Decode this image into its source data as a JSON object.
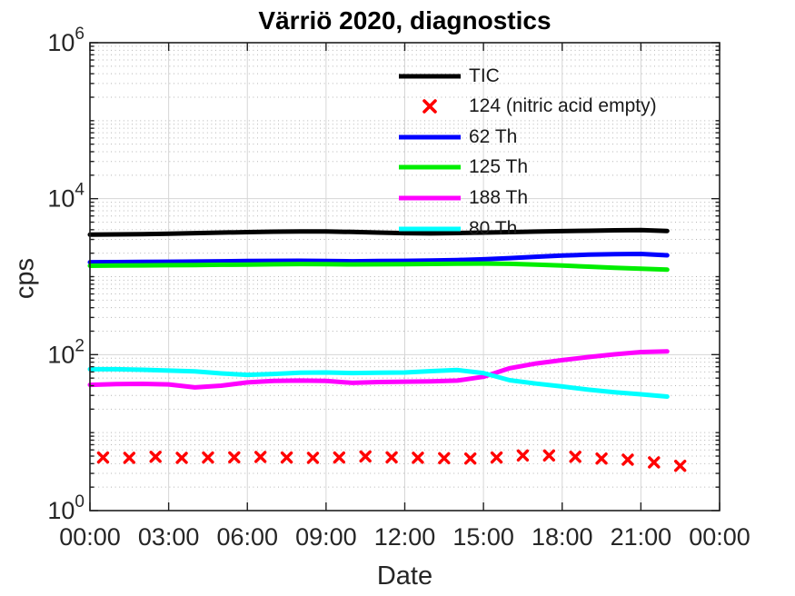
{
  "title": "Värriö 2020, diagnostics",
  "axes": {
    "ylabel": "cps",
    "xlabel": "Date",
    "x_ticks": [
      "00:00",
      "03:00",
      "06:00",
      "09:00",
      "12:00",
      "15:00",
      "18:00",
      "21:00",
      "00:00"
    ],
    "y_ticks": [
      {
        "base": "10",
        "exp": "0"
      },
      {
        "base": "10",
        "exp": "2"
      },
      {
        "base": "10",
        "exp": "4"
      },
      {
        "base": "10",
        "exp": "6"
      }
    ]
  },
  "colors": {
    "tic": "#000000",
    "m124": "#ff0000",
    "th62": "#0000ff",
    "th125": "#00ee00",
    "th188": "#ff00ff",
    "th80": "#00ffff",
    "grid_major": "#d6d6d6",
    "grid_minor": "#b4b4b4",
    "axis": "#1f1f1f",
    "text": "#262626"
  },
  "legend": {
    "items": [
      {
        "label": "TIC",
        "color": "#000000",
        "type": "line"
      },
      {
        "label": "124 (nitric acid empty)",
        "color": "#ff0000",
        "type": "x-marker"
      },
      {
        "label": "62 Th",
        "color": "#0000ff",
        "type": "line"
      },
      {
        "label": "125 Th",
        "color": "#00ee00",
        "type": "line"
      },
      {
        "label": "188 Th",
        "color": "#ff00ff",
        "type": "line"
      },
      {
        "label": "80 Th",
        "color": "#00ffff",
        "type": "line"
      }
    ]
  },
  "chart_data": {
    "type": "line",
    "title": "Värriö 2020, diagnostics",
    "xlabel": "Date",
    "ylabel": "cps",
    "x_axis": {
      "unit": "hours of day",
      "range": [
        0,
        24
      ],
      "tick_hours": [
        0,
        3,
        6,
        9,
        12,
        15,
        18,
        21,
        24
      ],
      "tick_labels": [
        "00:00",
        "03:00",
        "06:00",
        "09:00",
        "12:00",
        "15:00",
        "18:00",
        "21:00",
        "00:00"
      ]
    },
    "y_axis": {
      "scale": "log10",
      "range": [
        1,
        1000000
      ],
      "labeled_exponents": [
        0,
        2,
        4,
        6
      ]
    },
    "grid": {
      "major": "solid",
      "minor": "dotted",
      "minor_mantissas": [
        2,
        3,
        4,
        5,
        6,
        7,
        8,
        9
      ]
    },
    "legend_position": "upper center, transparent, no box",
    "series": [
      {
        "name": "TIC",
        "color": "#000000",
        "style": "line",
        "x": [
          0,
          1,
          2,
          3,
          4,
          5,
          6,
          7,
          8,
          9,
          10,
          11,
          12,
          13,
          14,
          15,
          16,
          17,
          18,
          19,
          20,
          21,
          22
        ],
        "y": [
          3450,
          3480,
          3510,
          3550,
          3610,
          3670,
          3720,
          3770,
          3800,
          3790,
          3740,
          3670,
          3610,
          3590,
          3620,
          3670,
          3720,
          3780,
          3830,
          3880,
          3930,
          3950,
          3860
        ]
      },
      {
        "name": "62 Th",
        "color": "#0000ff",
        "style": "line",
        "x": [
          0,
          1,
          2,
          3,
          4,
          5,
          6,
          7,
          8,
          9,
          10,
          11,
          12,
          13,
          14,
          15,
          16,
          17,
          18,
          19,
          20,
          21,
          22
        ],
        "y": [
          1530,
          1538,
          1545,
          1552,
          1560,
          1572,
          1585,
          1595,
          1600,
          1588,
          1575,
          1585,
          1595,
          1608,
          1632,
          1668,
          1730,
          1800,
          1862,
          1912,
          1945,
          1958,
          1880
        ]
      },
      {
        "name": "125 Th",
        "color": "#00ee00",
        "style": "line",
        "x": [
          0,
          1,
          2,
          3,
          4,
          5,
          6,
          7,
          8,
          9,
          10,
          11,
          12,
          13,
          14,
          15,
          16,
          17,
          18,
          19,
          20,
          21,
          22
        ],
        "y": [
          1380,
          1388,
          1395,
          1402,
          1410,
          1420,
          1430,
          1440,
          1450,
          1443,
          1436,
          1441,
          1449,
          1456,
          1464,
          1470,
          1458,
          1428,
          1388,
          1344,
          1300,
          1264,
          1228
        ]
      },
      {
        "name": "188 Th",
        "color": "#ff00ff",
        "style": "line",
        "x": [
          0,
          1,
          2,
          3,
          4,
          5,
          6,
          7,
          8,
          9,
          10,
          11,
          12,
          13,
          14,
          15,
          16,
          17,
          18,
          19,
          20,
          21,
          22
        ],
        "y": [
          41,
          42,
          42.2,
          41.5,
          38,
          40,
          44,
          46,
          46.5,
          46,
          43.5,
          44.5,
          45,
          45.5,
          46.5,
          52,
          67,
          77,
          85,
          93,
          101,
          108,
          110
        ]
      },
      {
        "name": "80 Th",
        "color": "#00ffff",
        "style": "line",
        "x": [
          0,
          1,
          2,
          3,
          4,
          5,
          6,
          7,
          8,
          9,
          10,
          11,
          12,
          13,
          14,
          15,
          16,
          17,
          18,
          19,
          20,
          21,
          22
        ],
        "y": [
          65,
          65,
          64,
          62.5,
          61,
          57.5,
          55,
          56.5,
          58.5,
          59,
          58,
          58.5,
          59,
          61.5,
          63.5,
          58,
          47,
          42.5,
          39,
          35.5,
          33,
          31,
          29
        ]
      },
      {
        "name": "124 (nitric acid empty)",
        "color": "#ff0000",
        "style": "x-marker",
        "x": [
          0.5,
          1.5,
          2.5,
          3.5,
          4.5,
          5.5,
          6.5,
          7.5,
          8.5,
          9.5,
          10.5,
          11.5,
          12.5,
          13.5,
          14.5,
          15.5,
          16.5,
          17.5,
          18.5,
          19.5,
          20.5,
          21.5,
          22.5
        ],
        "y": [
          4.8,
          4.75,
          4.9,
          4.75,
          4.8,
          4.82,
          4.88,
          4.8,
          4.75,
          4.8,
          4.95,
          4.82,
          4.76,
          4.7,
          4.65,
          4.8,
          5.1,
          5.1,
          4.9,
          4.65,
          4.5,
          4.15,
          3.75
        ]
      }
    ]
  },
  "legend_layout": {
    "entry_tops": [
      68,
      101,
      135,
      168,
      202,
      236
    ]
  }
}
